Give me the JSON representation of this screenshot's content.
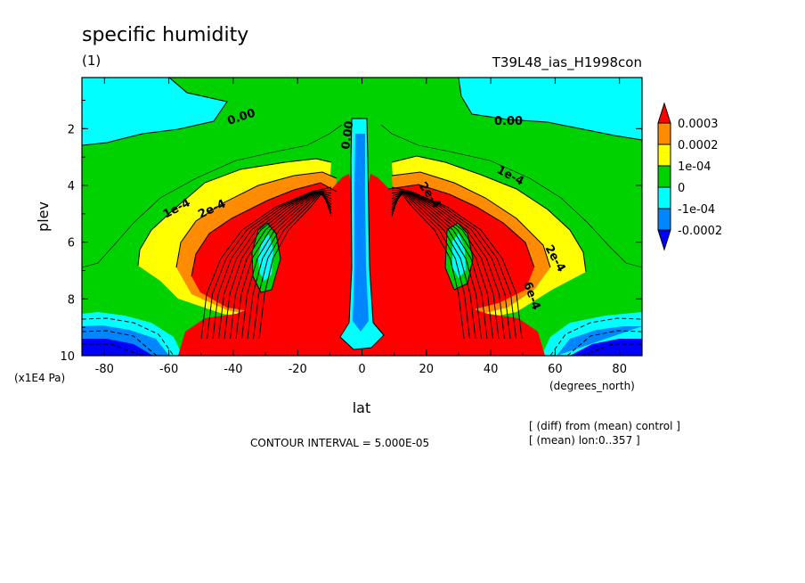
{
  "header": {
    "title": "specific humidity",
    "subtitle": "(1)",
    "experiment": "T39L48_ias_H1998con"
  },
  "footer": {
    "contour_interval": "CONTOUR INTERVAL = 5.000E-05",
    "note_diff": "[ (diff) from (mean) control ]",
    "note_mean": "[ (mean) lon:0..357 ]"
  },
  "chart_data": {
    "type": "contour",
    "title": "specific humidity",
    "xlabel": "lat",
    "xunit": "(degrees_north)",
    "ylabel": "plev",
    "yunit": "(x1E4 Pa)",
    "xlim": [
      -87,
      87
    ],
    "ylim": [
      10,
      0.2
    ],
    "y_inverted": true,
    "x_ticks": [
      -80,
      -60,
      -40,
      -20,
      0,
      20,
      40,
      60,
      80
    ],
    "y_ticks": [
      2,
      4,
      6,
      8,
      10
    ],
    "contour_interval": 5e-05,
    "colorbar": {
      "levels": [
        "0.0003",
        "0.0002",
        "1e-04",
        "0",
        "-1e-04",
        "-0.0002"
      ],
      "colors": [
        "#ff0000",
        "#ff8c00",
        "#ffff00",
        "#00d200",
        "#00ffff",
        "#0087ff",
        "#0000ff"
      ]
    },
    "contour_labels": [
      "0.00",
      "0.00",
      "0.00",
      "1e-4",
      "2e-4",
      "2e-4",
      "1e-4",
      "2e-4",
      "6e-4"
    ],
    "regions": [
      {
        "range": ">= 0.0003",
        "description": "subtropical lower-mid troposphere both hemispheres"
      },
      {
        "range": "0.0002-0.0003",
        "description": "outer band of moistening"
      },
      {
        "range": "1e-04-0.0002",
        "description": "broad band around maxima"
      },
      {
        "range": "0-1e-04",
        "description": "background"
      },
      {
        "range": "< 0",
        "description": "upper polar regions, near-surface high latitudes, equatorial column, ~30 deg pockets"
      }
    ]
  }
}
